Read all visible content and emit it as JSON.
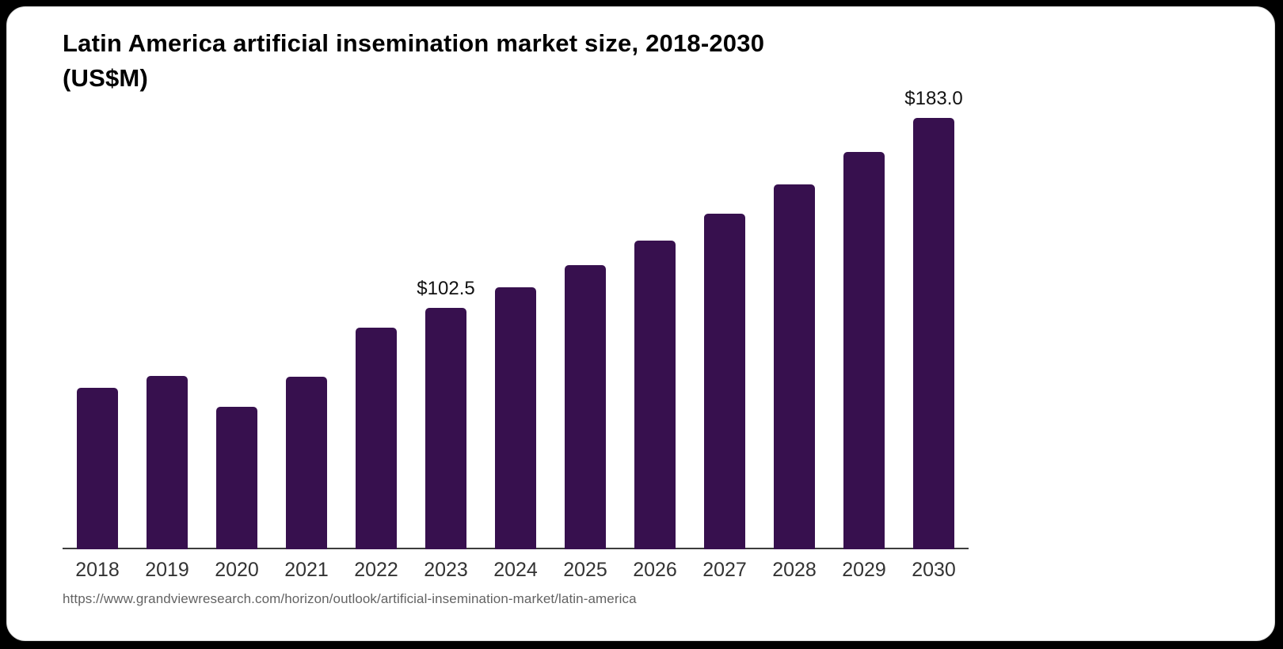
{
  "chart_data": {
    "type": "bar",
    "title": "Latin America artificial insemination market size, 2018-2030 (US$M)",
    "title_lines": [
      "Latin America artificial insemination market size, 2018-2030",
      "(US$M)"
    ],
    "categories": [
      "2018",
      "2019",
      "2020",
      "2021",
      "2022",
      "2023",
      "2024",
      "2025",
      "2026",
      "2027",
      "2028",
      "2029",
      "2030"
    ],
    "values": [
      68.4,
      73.6,
      60.6,
      73.2,
      94.1,
      102.5,
      111.2,
      120.5,
      131.1,
      142.4,
      154.7,
      168.4,
      183.0
    ],
    "value_labels": [
      "",
      "",
      "",
      "",
      "",
      "$102.5",
      "",
      "",
      "",
      "",
      "",
      "",
      "$183.0"
    ],
    "xlabel": "",
    "ylabel": "",
    "ylim": [
      0,
      186
    ],
    "grid": false,
    "legend": "none",
    "bar_color": "#37104E",
    "axis_color": "#3d3d3d",
    "tick_color": "#333333",
    "value_label_color": "#111111"
  },
  "source": {
    "url": "https://www.grandviewresearch.com/horizon/outlook/artificial-insemination-market/latin-america"
  }
}
